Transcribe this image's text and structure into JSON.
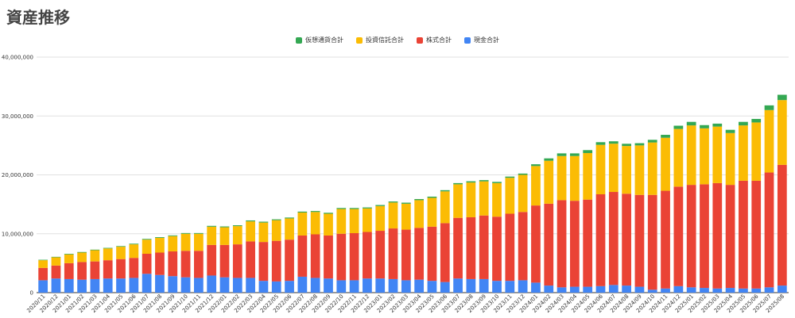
{
  "title": "資産推移",
  "chart_data": {
    "type": "bar",
    "stacked": true,
    "legend_position": "top",
    "ylim": [
      0,
      40000000
    ],
    "yticks": [
      "0",
      "10,000,000",
      "20,000,000",
      "30,000,000",
      "40,000,000"
    ],
    "ytick_values": [
      0,
      10000000,
      20000000,
      30000000,
      40000000
    ],
    "categories": [
      "2020/11",
      "2020/12",
      "2021/01",
      "2021/02",
      "2021/03",
      "2021/04",
      "2021/05",
      "2021/06",
      "2021/07",
      "2021/08",
      "2021/09",
      "2021/10",
      "2021/11",
      "2021/12",
      "2022/01",
      "2022/02",
      "2022/03",
      "2022/04",
      "2022/05",
      "2022/06",
      "2022/07",
      "2022/08",
      "2022/09",
      "2022/10",
      "2022/11",
      "2022/12",
      "2023/01",
      "2023/02",
      "2023/03",
      "2023/04",
      "2023/05",
      "2023/06",
      "2023/07",
      "2023/08",
      "2023/09",
      "2023/10",
      "2023/11",
      "2023/12",
      "2024/01",
      "2024/02",
      "2024/03",
      "2024/04",
      "2024/05",
      "2024/06",
      "2024/07",
      "2024/08",
      "2024/09",
      "2024/10",
      "2024/11",
      "2024/12",
      "2025/01",
      "2025/02",
      "2025/03",
      "2025/04",
      "2025/05",
      "2025/06",
      "2025/07",
      "2025/08"
    ],
    "series": [
      {
        "name": "現金合計",
        "color": "#4285f4",
        "values": [
          2100000,
          2400000,
          2300000,
          2200000,
          2300000,
          2400000,
          2400000,
          2500000,
          3200000,
          3000000,
          2800000,
          2600000,
          2500000,
          2900000,
          2600000,
          2500000,
          2500000,
          2000000,
          1900000,
          2000000,
          2700000,
          2500000,
          2400000,
          2100000,
          2100000,
          2400000,
          2400000,
          2300000,
          2100000,
          2200000,
          2000000,
          1800000,
          2400000,
          2300000,
          2300000,
          2000000,
          2000000,
          2100000,
          1700000,
          1200000,
          900000,
          1000000,
          1000000,
          1100000,
          1300000,
          1200000,
          1000000,
          500000,
          700000,
          1100000,
          900000,
          800000,
          700000,
          800000,
          700000,
          700000,
          900000,
          1200000
        ]
      },
      {
        "name": "株式合計",
        "color": "#ea4335",
        "values": [
          2100000,
          2200000,
          2700000,
          3000000,
          3000000,
          3100000,
          3300000,
          3400000,
          3400000,
          3800000,
          4200000,
          4500000,
          4600000,
          5200000,
          5500000,
          5700000,
          6200000,
          6600000,
          6900000,
          7000000,
          7000000,
          7400000,
          7300000,
          7900000,
          8000000,
          7900000,
          8100000,
          8600000,
          8600000,
          8800000,
          9200000,
          10000000,
          10300000,
          10500000,
          10800000,
          10900000,
          11400000,
          11600000,
          13100000,
          13900000,
          14800000,
          14600000,
          14800000,
          15600000,
          15800000,
          15600000,
          15600000,
          16100000,
          16600000,
          16900000,
          17400000,
          17600000,
          17900000,
          17500000,
          18300000,
          18300000,
          19500000,
          20500000
        ]
      },
      {
        "name": "投資信託合計",
        "color": "#fbbc04",
        "values": [
          1300000,
          1400000,
          1500000,
          1600000,
          1900000,
          2000000,
          2100000,
          2300000,
          2400000,
          2500000,
          2600000,
          2900000,
          2900000,
          3100000,
          3000000,
          3100000,
          3400000,
          3300000,
          3500000,
          3600000,
          3900000,
          3800000,
          3700000,
          4200000,
          4100000,
          4000000,
          4200000,
          4400000,
          4400000,
          4700000,
          4900000,
          5400000,
          5700000,
          5900000,
          5800000,
          5700000,
          6100000,
          6300000,
          6700000,
          7300000,
          7500000,
          7600000,
          7900000,
          8400000,
          8200000,
          8100000,
          8400000,
          8900000,
          9000000,
          9800000,
          10100000,
          9500000,
          9600000,
          8800000,
          9400000,
          9900000,
          10600000,
          11000000
        ]
      },
      {
        "name": "仮想通貨合計",
        "color": "#34a853",
        "values": [
          80000,
          80000,
          100000,
          100000,
          100000,
          100000,
          100000,
          110000,
          120000,
          120000,
          120000,
          120000,
          120000,
          140000,
          140000,
          140000,
          160000,
          150000,
          150000,
          150000,
          160000,
          160000,
          160000,
          170000,
          170000,
          170000,
          180000,
          180000,
          180000,
          190000,
          200000,
          200000,
          200000,
          210000,
          210000,
          210000,
          210000,
          220000,
          300000,
          400000,
          450000,
          450000,
          500000,
          450000,
          400000,
          380000,
          380000,
          450000,
          500000,
          550000,
          600000,
          550000,
          500000,
          550000,
          600000,
          600000,
          800000,
          900000
        ]
      }
    ]
  }
}
